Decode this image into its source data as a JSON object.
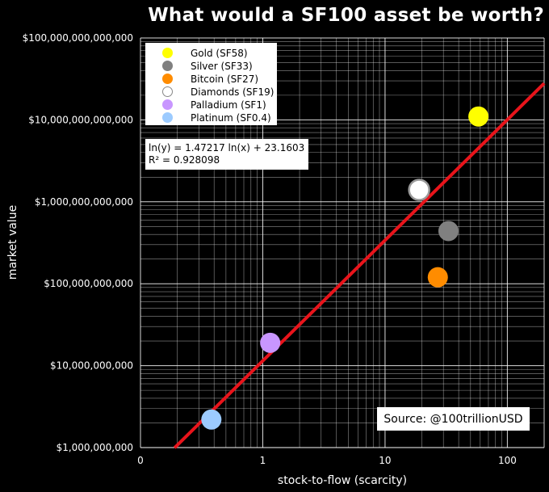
{
  "title": "What would a SF100 asset be worth?",
  "source": "Source: @100trillionUSD",
  "equation": {
    "line1": "ln(y) = 1.47217 ln(x) + 23.1603",
    "line2": "R² = 0.928098"
  },
  "colors": {
    "background": "#000000",
    "fit_line": "#e8141b",
    "grid": "#ffffff"
  },
  "chart_data": {
    "type": "scatter",
    "title": "What would a SF100 asset be worth?",
    "xlabel": "stock-to-flow (scarcity)",
    "ylabel": "market value",
    "xscale": "log",
    "yscale": "log",
    "xlim": [
      0.1,
      200
    ],
    "ylim": [
      1000000000,
      100000000000000
    ],
    "grid": true,
    "legend_position": "upper-left",
    "x_tick_labels": [
      "0",
      "1",
      "10",
      "100"
    ],
    "y_tick_labels": [
      "$1,000,000,000",
      "$10,000,000,000",
      "$100,000,000,000",
      "$1,000,000,000,000",
      "$10,000,000,000,000",
      "$100,000,000,000,000"
    ],
    "x_ticks": [
      0.1,
      1,
      10,
      100
    ],
    "y_ticks": [
      1000000000,
      10000000000,
      100000000000,
      1000000000000,
      10000000000000,
      100000000000000
    ],
    "series": [
      {
        "name": "Gold (SF58)",
        "x": 58,
        "y": 11000000000000,
        "color": "#ffff00",
        "hollow": false
      },
      {
        "name": "Silver (SF33)",
        "x": 33,
        "y": 440000000000,
        "color": "#808080",
        "hollow": false
      },
      {
        "name": "Bitcoin (SF27)",
        "x": 27,
        "y": 120000000000,
        "color": "#ff8c00",
        "hollow": false
      },
      {
        "name": "Diamonds (SF19)",
        "x": 19,
        "y": 1400000000000,
        "color": "#ffffff",
        "hollow": true
      },
      {
        "name": "Palladium (SF1)",
        "x": 1.15,
        "y": 19000000000,
        "color": "#c896ff",
        "hollow": false
      },
      {
        "name": "Platinum (SF0.4)",
        "x": 0.38,
        "y": 2200000000,
        "color": "#9ccbff",
        "hollow": false
      }
    ],
    "fit": {
      "type": "power",
      "a": 1.47217,
      "b": 23.1603,
      "x_range": [
        0.19,
        200
      ]
    }
  }
}
